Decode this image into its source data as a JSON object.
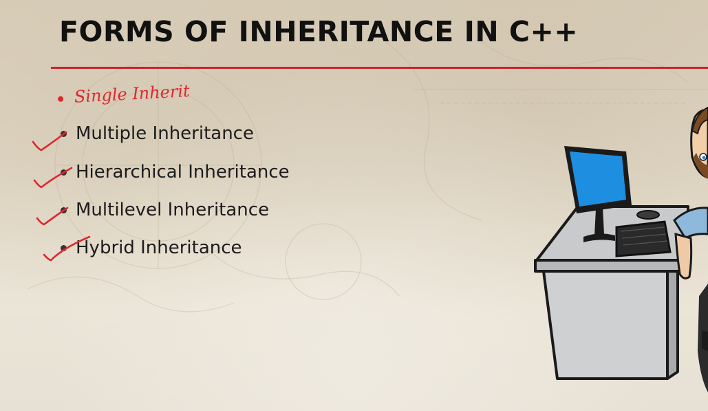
{
  "slide": {
    "title": "FORMS OF INHERITANCE IN C++",
    "handwritten_note": "Single Inherit",
    "items": [
      {
        "label": "Multiple Inheritance",
        "checked": true
      },
      {
        "label": "Hierarchical Inheritance",
        "checked": true
      },
      {
        "label": "Multilevel Inheritance",
        "checked": true
      },
      {
        "label": "Hybrid Inheritance",
        "checked": true
      }
    ]
  },
  "colors": {
    "accent_red": "#c8252c",
    "annotation_red": "#e0262f",
    "title_text": "#111111",
    "monitor_screen": "#1e8fe0"
  },
  "icons": {
    "illustration": "person-at-computer-desk-illustration",
    "check": "handwritten-check-mark-icon"
  }
}
